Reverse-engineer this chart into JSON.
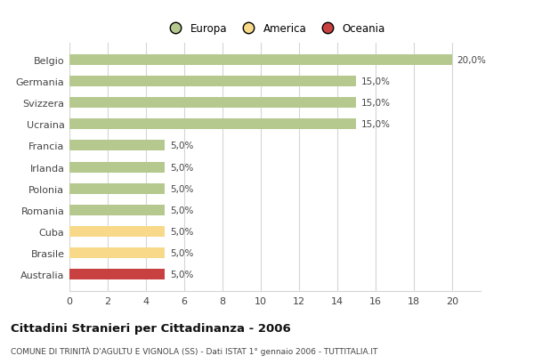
{
  "categories": [
    "Belgio",
    "Germania",
    "Svizzera",
    "Ucraina",
    "Francia",
    "Irlanda",
    "Polonia",
    "Romania",
    "Cuba",
    "Brasile",
    "Australia"
  ],
  "values": [
    20.0,
    15.0,
    15.0,
    15.0,
    5.0,
    5.0,
    5.0,
    5.0,
    5.0,
    5.0,
    5.0
  ],
  "colors": [
    "#b5c98e",
    "#b5c98e",
    "#b5c98e",
    "#b5c98e",
    "#b5c98e",
    "#b5c98e",
    "#b5c98e",
    "#b5c98e",
    "#f8d98a",
    "#f8d98a",
    "#c94040"
  ],
  "legend_labels": [
    "Europa",
    "America",
    "Oceania"
  ],
  "legend_colors": [
    "#b5c98e",
    "#f8d98a",
    "#c94040"
  ],
  "value_labels": [
    "20,0%",
    "15,0%",
    "15,0%",
    "15,0%",
    "5,0%",
    "5,0%",
    "5,0%",
    "5,0%",
    "5,0%",
    "5,0%",
    "5,0%"
  ],
  "xlim": [
    0,
    21.5
  ],
  "xticks": [
    0,
    2,
    4,
    6,
    8,
    10,
    12,
    14,
    16,
    18,
    20
  ],
  "title": "Cittadini Stranieri per Cittadinanza - 2006",
  "subtitle": "COMUNE DI TRINITÀ D'AGULTU E VIGNOLA (SS) - Dati ISTAT 1° gennaio 2006 - TUTTITALIA.IT",
  "background_color": "#ffffff",
  "grid_color": "#d5d5d5",
  "bar_height": 0.5
}
